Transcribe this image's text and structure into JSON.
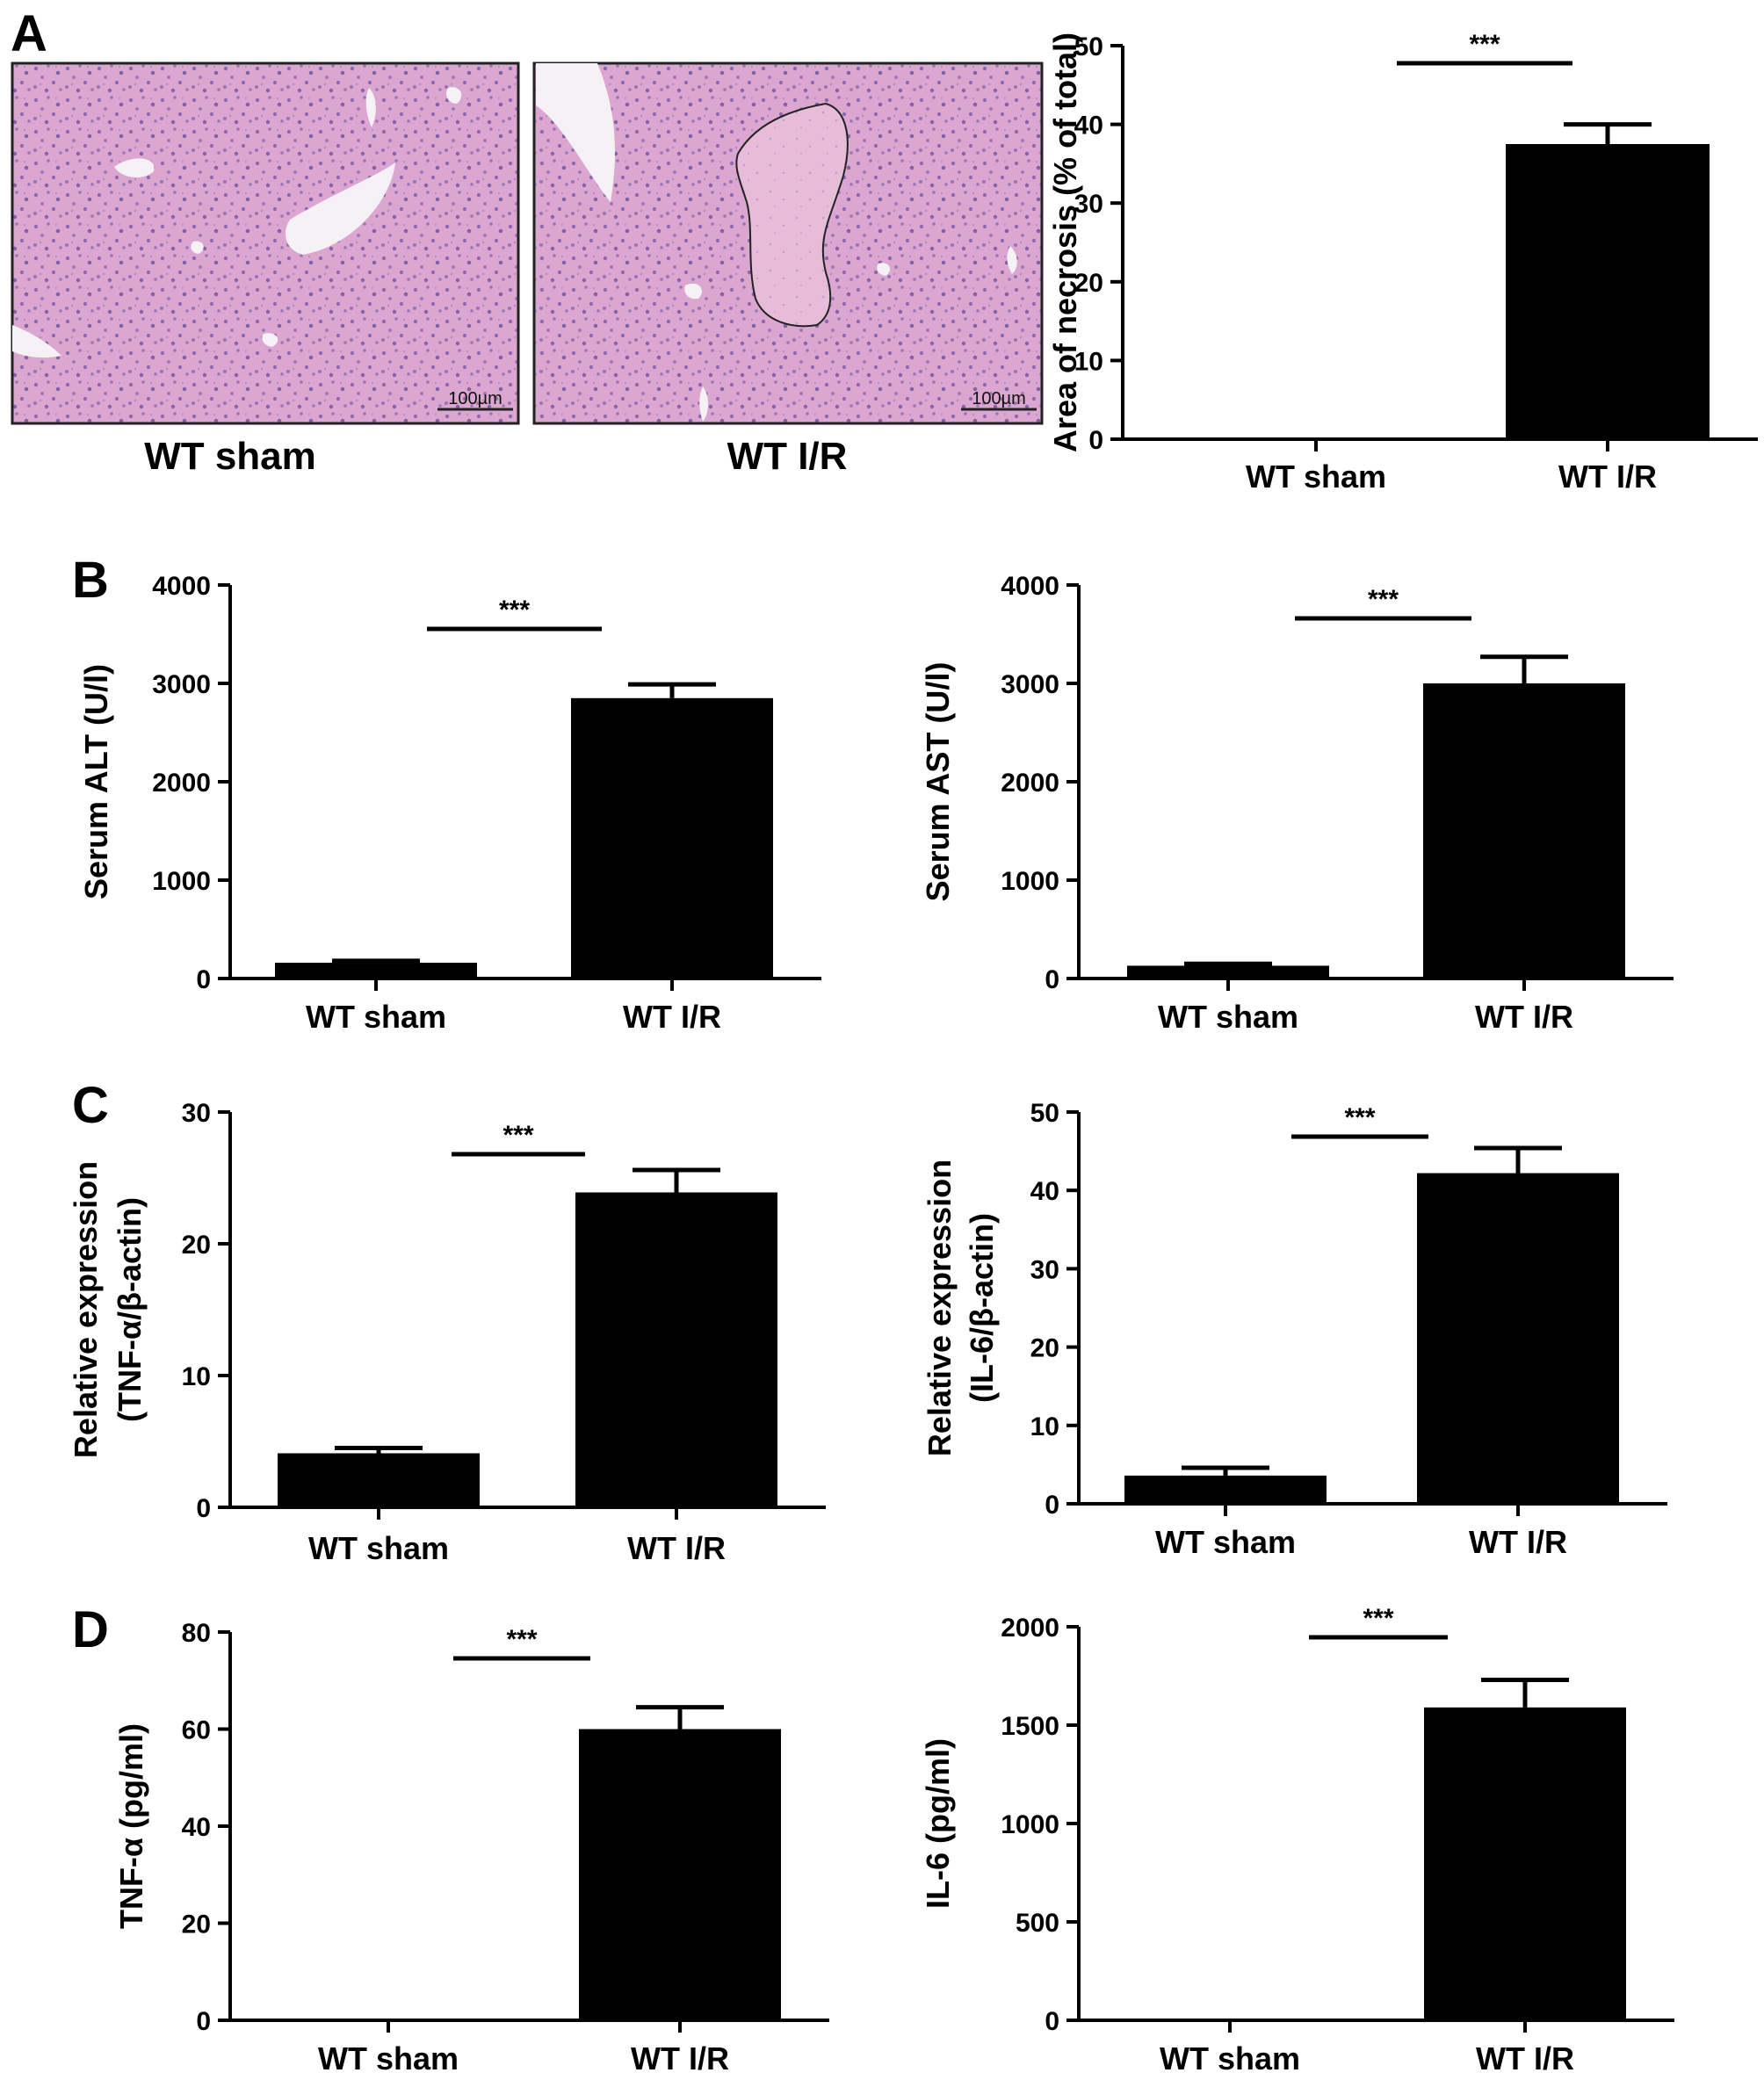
{
  "panels": {
    "A": "A",
    "B": "B",
    "C": "C",
    "D": "D"
  },
  "micrographs": [
    {
      "caption": "WT sham",
      "scale_bar": "100µm"
    },
    {
      "caption": "WT I/R",
      "scale_bar": "100µm"
    }
  ],
  "chart_data": [
    {
      "id": "necrosis",
      "type": "bar",
      "categories": [
        "WT sham",
        "WT I/R"
      ],
      "values": [
        0,
        37.5
      ],
      "errors": [
        0,
        2.5
      ],
      "ylabel": "Area of necrosis (% of total)",
      "ylim": [
        0,
        50
      ],
      "yticks": [
        0,
        10,
        20,
        30,
        40,
        50
      ],
      "significance": "***"
    },
    {
      "id": "alt",
      "type": "bar",
      "categories": [
        "WT sham",
        "WT I/R"
      ],
      "values": [
        160,
        2850
      ],
      "errors": [
        20,
        140
      ],
      "ylabel": "Serum ALT (U/l)",
      "ylim": [
        0,
        4000
      ],
      "yticks": [
        0,
        1000,
        2000,
        3000,
        4000
      ],
      "significance": "***"
    },
    {
      "id": "ast",
      "type": "bar",
      "categories": [
        "WT sham",
        "WT I/R"
      ],
      "values": [
        130,
        3000
      ],
      "errors": [
        20,
        270
      ],
      "ylabel": "Serum AST (U/l)",
      "ylim": [
        0,
        4000
      ],
      "yticks": [
        0,
        1000,
        2000,
        3000,
        4000
      ],
      "significance": "***"
    },
    {
      "id": "tnf-mrna",
      "type": "bar",
      "categories": [
        "WT sham",
        "WT I/R"
      ],
      "values": [
        4.1,
        23.9
      ],
      "errors": [
        0.4,
        1.7
      ],
      "ylabel": "Relative expression",
      "ylabel2": "(TNF-α/β-actin)",
      "ylim": [
        0,
        30
      ],
      "yticks": [
        0,
        10,
        20,
        30
      ],
      "significance": "***"
    },
    {
      "id": "il6-mrna",
      "type": "bar",
      "categories": [
        "WT sham",
        "WT I/R"
      ],
      "values": [
        3.6,
        42.2
      ],
      "errors": [
        1.0,
        3.2
      ],
      "ylabel": "Relative expression",
      "ylabel2": "(IL-6/β-actin)",
      "ylim": [
        0,
        50
      ],
      "yticks": [
        0,
        10,
        20,
        30,
        40,
        50
      ],
      "significance": "***"
    },
    {
      "id": "tnf-protein",
      "type": "bar",
      "categories": [
        "WT sham",
        "WT I/R"
      ],
      "values": [
        0,
        60
      ],
      "errors": [
        0,
        4.5
      ],
      "ylabel": "TNF-α (pg/ml)",
      "ylim": [
        0,
        80
      ],
      "yticks": [
        0,
        20,
        40,
        60,
        80
      ],
      "significance": "***"
    },
    {
      "id": "il6-protein",
      "type": "bar",
      "categories": [
        "WT sham",
        "WT I/R"
      ],
      "values": [
        0,
        1590
      ],
      "errors": [
        0,
        140
      ],
      "ylabel": "IL-6 (pg/ml)",
      "ylim": [
        0,
        2000
      ],
      "yticks": [
        0,
        500,
        1000,
        1500,
        2000
      ],
      "significance": "***"
    }
  ]
}
